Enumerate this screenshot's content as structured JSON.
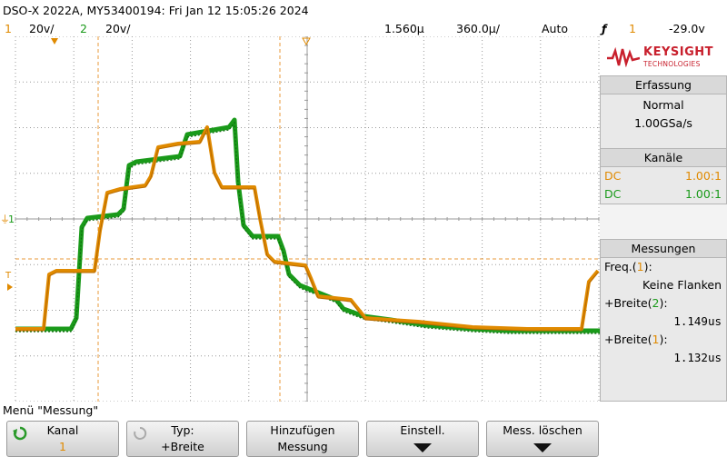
{
  "header": {
    "title": "DSO-X 2022A, MY53400194: Fri Jan 12 15:05:26 2024"
  },
  "status": {
    "ch1_num": "1",
    "ch1_scale": "20ⅴ/",
    "ch2_num": "2",
    "ch2_scale": "20ⅴ/",
    "timebase": "1.560µ",
    "timebase_unit_note": "",
    "delay": "360.0µ/",
    "trigger_mode": "Auto",
    "trigger_symbol": "ƒ",
    "trigger_source": "1",
    "trigger_level": "-29.0ⅴ"
  },
  "markers": {
    "ch_marker": "1",
    "trig_marker": "T"
  },
  "brand": {
    "name": "KEYSIGHT",
    "sub": "TECHNOLOGIES"
  },
  "acquisition": {
    "title": "Erfassung",
    "mode": "Normal",
    "rate": "1.00GSa/s"
  },
  "channels": {
    "title": "Kanäle",
    "rows": [
      {
        "coupling": "DC",
        "probe": "1.00:1",
        "color": "#e08a00"
      },
      {
        "coupling": "DC",
        "probe": "1.00:1",
        "color": "#1a9a1a"
      }
    ]
  },
  "measurements": {
    "title": "Messungen",
    "items": [
      {
        "label_pre": "Freq.(",
        "ch": "1",
        "label_post": "):",
        "value": "Keine Flanken",
        "ch_color": "#e08a00"
      },
      {
        "label_pre": "+Breite(",
        "ch": "2",
        "label_post": "):",
        "value": "1.149us",
        "ch_color": "#1a9a1a"
      },
      {
        "label_pre": "+Breite(",
        "ch": "1",
        "label_post": "):",
        "value": "1.132us",
        "ch_color": "#e08a00"
      }
    ]
  },
  "menu": {
    "title": "Menü \"Messung\""
  },
  "softkeys": [
    {
      "line1": "Kanal",
      "line2": "1"
    },
    {
      "line1": "Typ:",
      "line2": "+Breite"
    },
    {
      "line1": "Hinzufügen",
      "line2": "Messung"
    },
    {
      "line1": "Einstell.",
      "line2": ""
    },
    {
      "line1": "Mess. löschen",
      "line2": ""
    }
  ],
  "colors": {
    "ch1": "#e08a00",
    "ch2": "#1a9a1a",
    "grid": "#9a9a9a",
    "cursor": "#e89a3a"
  }
}
